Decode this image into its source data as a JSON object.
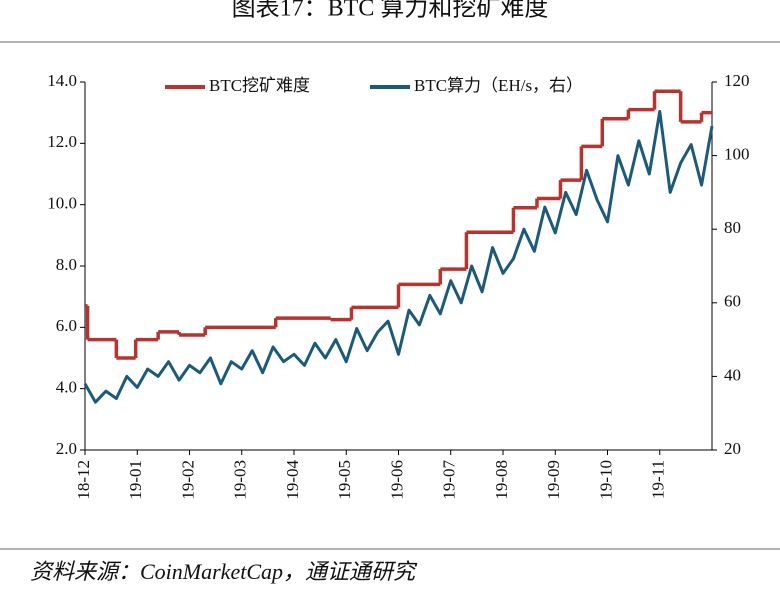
{
  "chart_data": {
    "type": "line",
    "title": "图表17：BTC 算力和挖矿难度",
    "source": "资料来源：CoinMarketCap，通证通研究",
    "xlim": [
      0,
      12
    ],
    "xticks": [
      {
        "value": 0,
        "label": "18-12"
      },
      {
        "value": 1,
        "label": "19-01"
      },
      {
        "value": 2,
        "label": "19-02"
      },
      {
        "value": 3,
        "label": "19-03"
      },
      {
        "value": 4,
        "label": "19-04"
      },
      {
        "value": 5,
        "label": "19-05"
      },
      {
        "value": 6,
        "label": "19-06"
      },
      {
        "value": 7,
        "label": "19-07"
      },
      {
        "value": 8,
        "label": "19-08"
      },
      {
        "value": 9,
        "label": "19-09"
      },
      {
        "value": 10,
        "label": "19-10"
      },
      {
        "value": 11,
        "label": "19-11"
      }
    ],
    "ylim": [
      2,
      14
    ],
    "yticks": [
      {
        "value": 2,
        "label": "2.0"
      },
      {
        "value": 4,
        "label": "4.0"
      },
      {
        "value": 6,
        "label": "6.0"
      },
      {
        "value": 8,
        "label": "8.0"
      },
      {
        "value": 10,
        "label": "10.0"
      },
      {
        "value": 12,
        "label": "12.0"
      },
      {
        "value": 14,
        "label": "14.0"
      }
    ],
    "y2lim": [
      20,
      120
    ],
    "y2ticks": [
      20,
      40,
      60,
      80,
      100,
      120
    ],
    "series": [
      {
        "name": "BTC挖矿难度",
        "color": "#b8322e",
        "step": true,
        "x": [
          0,
          0.05,
          0.6,
          0.97,
          1.4,
          1.8,
          2.3,
          3.65,
          4.7,
          5.1,
          6.0,
          6.8,
          7.3,
          8.2,
          8.65,
          9.1,
          9.5,
          9.9,
          10.4,
          10.9,
          11.4,
          11.8
        ],
        "values": [
          6.7,
          5.6,
          5.0,
          5.6,
          5.85,
          5.75,
          6.0,
          6.3,
          6.25,
          6.65,
          7.4,
          7.9,
          9.1,
          9.9,
          10.2,
          10.8,
          11.9,
          12.8,
          13.1,
          13.7,
          12.7,
          13.0
        ]
      },
      {
        "name": "BTC算力（EH/s，右）",
        "color": "#1b5a78",
        "axis": "y2",
        "x": [
          0,
          0.2,
          0.4,
          0.6,
          0.8,
          1.0,
          1.2,
          1.4,
          1.6,
          1.8,
          2.0,
          2.2,
          2.4,
          2.6,
          2.8,
          3.0,
          3.2,
          3.4,
          3.6,
          3.8,
          4.0,
          4.2,
          4.4,
          4.6,
          4.8,
          5.0,
          5.2,
          5.4,
          5.6,
          5.8,
          6.0,
          6.2,
          6.4,
          6.6,
          6.8,
          7.0,
          7.2,
          7.4,
          7.6,
          7.8,
          8.0,
          8.2,
          8.4,
          8.6,
          8.8,
          9.0,
          9.2,
          9.4,
          9.6,
          9.8,
          10.0,
          10.2,
          10.4,
          10.6,
          10.8,
          11.0,
          11.2,
          11.4,
          11.6,
          11.8,
          12.0
        ],
        "values": [
          38,
          33,
          36,
          34,
          40,
          37,
          42,
          40,
          44,
          39,
          43,
          41,
          45,
          38,
          44,
          42,
          47,
          41,
          48,
          44,
          46,
          43,
          49,
          45,
          50,
          44,
          53,
          47,
          52,
          55,
          46,
          58,
          54,
          62,
          57,
          66,
          60,
          70,
          63,
          75,
          68,
          72,
          80,
          74,
          86,
          79,
          90,
          84,
          96,
          88,
          82,
          100,
          92,
          104,
          95,
          112,
          90,
          98,
          103,
          92,
          108
        ]
      }
    ]
  }
}
